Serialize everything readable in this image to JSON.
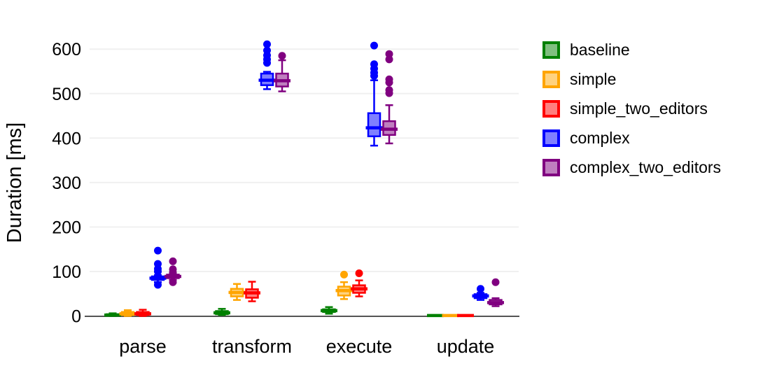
{
  "chart_data": {
    "type": "boxplot",
    "ylabel": "Duration [ms]",
    "categories": [
      "parse",
      "transform",
      "execute",
      "update"
    ],
    "yticks": [
      0,
      100,
      200,
      300,
      400,
      500,
      600
    ],
    "ylim": [
      0,
      620
    ],
    "grid": true,
    "legend_position": "right",
    "axis_color": "#545454",
    "grid_color": "#f0f0f0",
    "series": [
      {
        "name": "baseline",
        "color": "#008000",
        "fill": "#7fbf7f",
        "boxes": [
          {
            "category": "parse",
            "low": 0,
            "q1": 1,
            "median": 2,
            "q3": 4,
            "high": 6,
            "outliers": []
          },
          {
            "category": "transform",
            "low": 2,
            "q1": 4,
            "median": 7,
            "q3": 11,
            "high": 16,
            "outliers": []
          },
          {
            "category": "execute",
            "low": 5,
            "q1": 9,
            "median": 12,
            "q3": 15,
            "high": 20,
            "outliers": []
          },
          {
            "category": "update",
            "low": 0,
            "q1": 0,
            "median": 1,
            "q3": 1,
            "high": 2,
            "outliers": []
          }
        ]
      },
      {
        "name": "simple",
        "color": "#ffa500",
        "fill": "#ffd27f",
        "boxes": [
          {
            "category": "parse",
            "low": 0,
            "q1": 2,
            "median": 5,
            "q3": 9,
            "high": 13,
            "outliers": []
          },
          {
            "category": "transform",
            "low": 36,
            "q1": 44,
            "median": 53,
            "q3": 61,
            "high": 72,
            "outliers": []
          },
          {
            "category": "execute",
            "low": 38,
            "q1": 46,
            "median": 57,
            "q3": 66,
            "high": 76,
            "outliers": [
              93
            ]
          },
          {
            "category": "update",
            "low": 0,
            "q1": 0,
            "median": 1,
            "q3": 1,
            "high": 2,
            "outliers": []
          }
        ]
      },
      {
        "name": "simple_two_editors",
        "color": "#ff0000",
        "fill": "#ff7f7f",
        "boxes": [
          {
            "category": "parse",
            "low": 0,
            "q1": 2,
            "median": 5,
            "q3": 9,
            "high": 14,
            "outliers": []
          },
          {
            "category": "transform",
            "low": 33,
            "q1": 41,
            "median": 52,
            "q3": 60,
            "high": 77,
            "outliers": []
          },
          {
            "category": "execute",
            "low": 44,
            "q1": 52,
            "median": 61,
            "q3": 69,
            "high": 80,
            "outliers": [
              96
            ]
          },
          {
            "category": "update",
            "low": 0,
            "q1": 0,
            "median": 1,
            "q3": 1,
            "high": 2,
            "outliers": []
          }
        ]
      },
      {
        "name": "complex",
        "color": "#0000ff",
        "fill": "#7f7fff",
        "boxes": [
          {
            "category": "parse",
            "low": 76,
            "q1": 81,
            "median": 85,
            "q3": 89,
            "high": 92,
            "outliers": [
              70,
              100,
              106,
              117,
              147
            ]
          },
          {
            "category": "transform",
            "low": 510,
            "q1": 519,
            "median": 530,
            "q3": 545,
            "high": 549,
            "outliers": [
              569,
              577,
              586,
              597,
              611
            ]
          },
          {
            "category": "execute",
            "low": 383,
            "q1": 404,
            "median": 423,
            "q3": 456,
            "high": 530,
            "outliers": [
              540,
              547,
              556,
              566,
              608
            ]
          },
          {
            "category": "update",
            "low": 36,
            "q1": 40,
            "median": 45,
            "q3": 49,
            "high": 52,
            "outliers": [
              61
            ]
          }
        ]
      },
      {
        "name": "complex_two_editors",
        "color": "#800080",
        "fill": "#bf7fbf",
        "boxes": [
          {
            "category": "parse",
            "low": 81,
            "q1": 85,
            "median": 89,
            "q3": 93,
            "high": 96,
            "outliers": [
              76,
              98,
              105,
              123
            ]
          },
          {
            "category": "transform",
            "low": 505,
            "q1": 516,
            "median": 529,
            "q3": 545,
            "high": 575,
            "outliers": [
              585
            ]
          },
          {
            "category": "execute",
            "low": 388,
            "q1": 407,
            "median": 420,
            "q3": 438,
            "high": 474,
            "outliers": [
              501,
              508,
              525,
              532,
              577,
              589
            ]
          },
          {
            "category": "update",
            "low": 22,
            "q1": 26,
            "median": 30,
            "q3": 36,
            "high": 40,
            "outliers": [
              76
            ]
          }
        ]
      }
    ]
  }
}
